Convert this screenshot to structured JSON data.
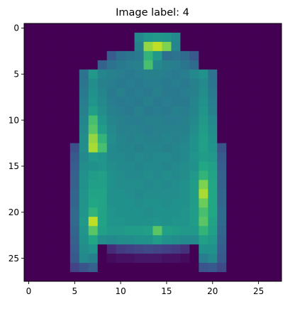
{
  "chart_data": {
    "type": "heatmap",
    "title": "Image label: 4",
    "xlabel": "",
    "ylabel": "",
    "colormap": "viridis",
    "value_range": [
      0,
      255
    ],
    "xlim": [
      -0.5,
      27.5
    ],
    "ylim": [
      27.5,
      -0.5
    ],
    "x_ticks": [
      0,
      5,
      10,
      15,
      20,
      25
    ],
    "y_ticks": [
      0,
      5,
      10,
      15,
      20,
      25
    ],
    "grid": false,
    "colors": {
      "background": "#440154",
      "axes_frame": "#000000"
    },
    "matrix": [
      [
        0,
        0,
        0,
        0,
        0,
        0,
        0,
        0,
        0,
        0,
        0,
        0,
        0,
        0,
        0,
        0,
        0,
        0,
        0,
        0,
        0,
        0,
        0,
        0,
        0,
        0,
        0,
        0
      ],
      [
        0,
        0,
        0,
        0,
        0,
        0,
        0,
        0,
        0,
        0,
        0,
        0,
        150,
        165,
        170,
        165,
        150,
        0,
        0,
        0,
        0,
        0,
        0,
        0,
        0,
        0,
        0,
        0
      ],
      [
        0,
        0,
        0,
        0,
        0,
        0,
        0,
        0,
        0,
        0,
        0,
        0,
        140,
        230,
        240,
        225,
        145,
        0,
        0,
        0,
        0,
        0,
        0,
        0,
        0,
        0,
        0,
        0
      ],
      [
        0,
        0,
        0,
        0,
        0,
        0,
        0,
        0,
        0,
        95,
        115,
        125,
        130,
        200,
        170,
        115,
        120,
        110,
        90,
        0,
        0,
        0,
        0,
        0,
        0,
        0,
        0,
        0
      ],
      [
        0,
        0,
        0,
        0,
        0,
        0,
        0,
        0,
        100,
        120,
        130,
        135,
        140,
        210,
        150,
        140,
        135,
        125,
        110,
        0,
        0,
        0,
        0,
        0,
        0,
        0,
        0,
        0
      ],
      [
        0,
        0,
        0,
        0,
        0,
        0,
        120,
        170,
        145,
        140,
        135,
        130,
        135,
        140,
        140,
        135,
        130,
        135,
        150,
        160,
        120,
        0,
        0,
        0,
        0,
        0,
        0,
        0
      ],
      [
        0,
        0,
        0,
        0,
        0,
        0,
        125,
        155,
        140,
        135,
        130,
        135,
        130,
        135,
        135,
        130,
        135,
        130,
        140,
        150,
        125,
        0,
        0,
        0,
        0,
        0,
        0,
        0
      ],
      [
        0,
        0,
        0,
        0,
        0,
        0,
        130,
        160,
        145,
        130,
        140,
        130,
        135,
        130,
        140,
        130,
        130,
        135,
        140,
        155,
        130,
        0,
        0,
        0,
        0,
        0,
        0,
        0
      ],
      [
        0,
        0,
        0,
        0,
        0,
        0,
        135,
        165,
        150,
        135,
        130,
        135,
        130,
        140,
        130,
        135,
        130,
        130,
        145,
        160,
        135,
        0,
        0,
        0,
        0,
        0,
        0,
        0
      ],
      [
        0,
        0,
        0,
        0,
        0,
        0,
        140,
        180,
        155,
        140,
        135,
        130,
        140,
        130,
        135,
        130,
        140,
        135,
        145,
        165,
        140,
        0,
        0,
        0,
        0,
        0,
        0,
        0
      ],
      [
        0,
        0,
        0,
        0,
        0,
        0,
        145,
        210,
        165,
        145,
        140,
        135,
        135,
        140,
        140,
        135,
        135,
        140,
        150,
        170,
        150,
        0,
        0,
        0,
        0,
        0,
        0,
        0
      ],
      [
        0,
        0,
        0,
        0,
        0,
        0,
        150,
        215,
        175,
        150,
        140,
        140,
        140,
        135,
        140,
        140,
        140,
        140,
        155,
        175,
        155,
        0,
        0,
        0,
        0,
        0,
        0,
        0
      ],
      [
        0,
        0,
        0,
        0,
        0,
        0,
        155,
        230,
        200,
        155,
        145,
        140,
        145,
        140,
        140,
        145,
        140,
        145,
        160,
        180,
        160,
        0,
        0,
        0,
        0,
        0,
        0,
        0
      ],
      [
        0,
        0,
        0,
        0,
        0,
        80,
        155,
        235,
        210,
        150,
        145,
        145,
        140,
        145,
        145,
        140,
        145,
        150,
        160,
        180,
        165,
        80,
        0,
        0,
        0,
        0,
        0,
        0
      ],
      [
        0,
        0,
        0,
        0,
        0,
        90,
        150,
        170,
        165,
        150,
        150,
        145,
        150,
        145,
        150,
        150,
        145,
        150,
        165,
        175,
        170,
        90,
        0,
        0,
        0,
        0,
        0,
        0
      ],
      [
        0,
        0,
        0,
        0,
        0,
        95,
        155,
        160,
        165,
        155,
        150,
        150,
        145,
        150,
        150,
        145,
        150,
        155,
        160,
        190,
        180,
        95,
        0,
        0,
        0,
        0,
        0,
        0
      ],
      [
        0,
        0,
        0,
        0,
        0,
        100,
        160,
        175,
        180,
        160,
        155,
        150,
        150,
        155,
        150,
        155,
        150,
        155,
        170,
        200,
        185,
        100,
        0,
        0,
        0,
        0,
        0,
        0
      ],
      [
        0,
        0,
        0,
        0,
        0,
        100,
        160,
        180,
        180,
        160,
        155,
        155,
        155,
        150,
        155,
        150,
        155,
        160,
        175,
        225,
        190,
        100,
        0,
        0,
        0,
        0,
        0,
        0
      ],
      [
        0,
        0,
        0,
        0,
        0,
        105,
        165,
        185,
        185,
        160,
        160,
        155,
        150,
        155,
        155,
        155,
        155,
        160,
        175,
        235,
        190,
        105,
        0,
        0,
        0,
        0,
        0,
        0
      ],
      [
        0,
        0,
        0,
        0,
        0,
        105,
        165,
        190,
        185,
        160,
        160,
        160,
        155,
        160,
        160,
        155,
        160,
        160,
        175,
        220,
        190,
        105,
        0,
        0,
        0,
        0,
        0,
        0
      ],
      [
        0,
        0,
        0,
        0,
        0,
        110,
        165,
        200,
        185,
        165,
        160,
        160,
        160,
        155,
        160,
        160,
        160,
        165,
        175,
        210,
        190,
        110,
        0,
        0,
        0,
        0,
        0,
        0
      ],
      [
        0,
        0,
        0,
        0,
        0,
        110,
        170,
        240,
        185,
        165,
        165,
        160,
        160,
        160,
        165,
        160,
        165,
        165,
        175,
        215,
        185,
        110,
        0,
        0,
        0,
        0,
        0,
        0
      ],
      [
        0,
        0,
        0,
        0,
        0,
        105,
        165,
        215,
        180,
        170,
        170,
        175,
        175,
        180,
        215,
        180,
        175,
        170,
        170,
        200,
        180,
        105,
        0,
        0,
        0,
        0,
        0,
        0
      ],
      [
        0,
        0,
        0,
        0,
        0,
        100,
        160,
        190,
        155,
        150,
        155,
        155,
        160,
        160,
        175,
        160,
        155,
        150,
        150,
        180,
        170,
        100,
        0,
        0,
        0,
        0,
        0,
        0
      ],
      [
        0,
        0,
        0,
        0,
        0,
        95,
        155,
        165,
        0,
        40,
        55,
        60,
        65,
        70,
        65,
        60,
        55,
        45,
        0,
        160,
        160,
        95,
        0,
        0,
        0,
        0,
        0,
        0
      ],
      [
        0,
        0,
        0,
        0,
        0,
        90,
        150,
        140,
        0,
        10,
        15,
        15,
        20,
        20,
        20,
        15,
        15,
        10,
        0,
        135,
        150,
        90,
        0,
        0,
        0,
        0,
        0,
        0
      ],
      [
        0,
        0,
        0,
        0,
        0,
        65,
        85,
        100,
        0,
        0,
        0,
        0,
        0,
        0,
        0,
        0,
        0,
        0,
        0,
        85,
        90,
        70,
        0,
        0,
        0,
        0,
        0,
        0
      ],
      [
        0,
        0,
        0,
        0,
        0,
        0,
        0,
        0,
        0,
        0,
        0,
        0,
        0,
        0,
        0,
        0,
        0,
        0,
        0,
        0,
        0,
        0,
        0,
        0,
        0,
        0,
        0,
        0
      ]
    ]
  }
}
